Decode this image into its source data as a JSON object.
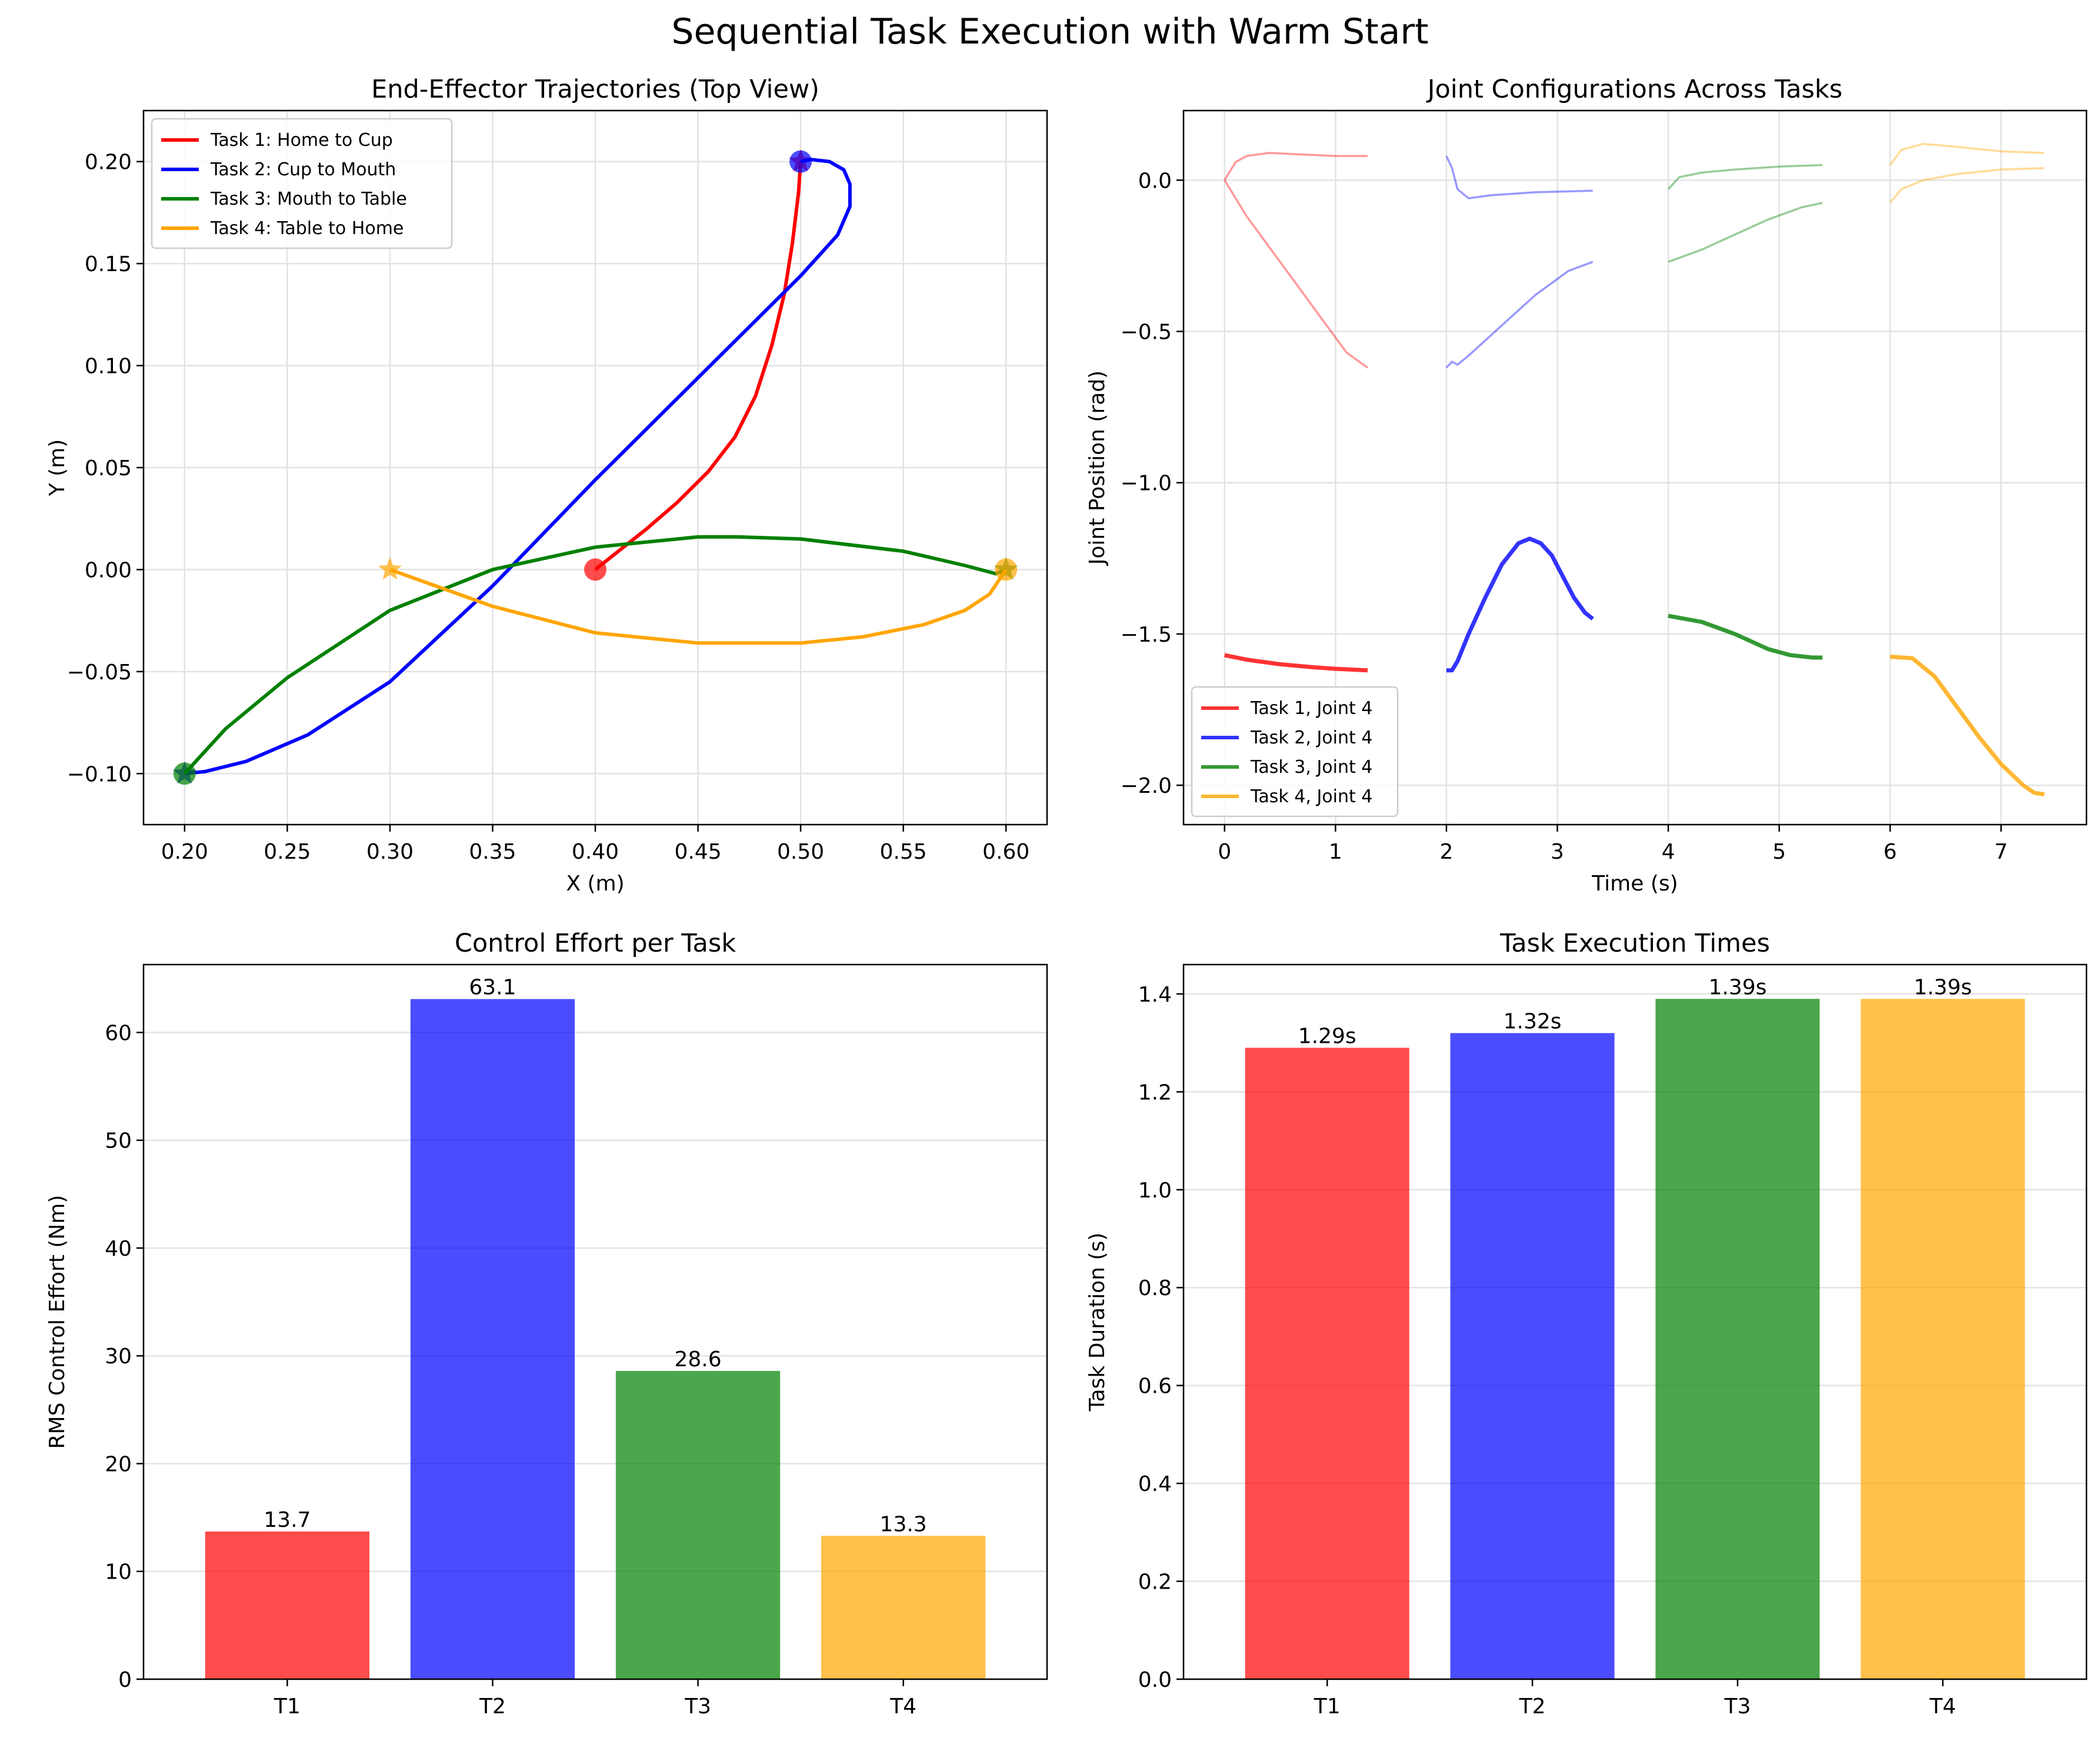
{
  "figure": {
    "title": "Sequential Task Execution with Warm Start"
  },
  "chart_data": [
    {
      "id": "trajectories",
      "type": "line",
      "title": "End-Effector Trajectories (Top View)",
      "xlabel": "X (m)",
      "ylabel": "Y (m)",
      "xlim": [
        0.18,
        0.62
      ],
      "ylim": [
        -0.125,
        0.225
      ],
      "xticks": [
        0.2,
        0.25,
        0.3,
        0.35,
        0.4,
        0.45,
        0.5,
        0.55,
        0.6
      ],
      "xtick_labels": [
        "0.20",
        "0.25",
        "0.30",
        "0.35",
        "0.40",
        "0.45",
        "0.50",
        "0.55",
        "0.60"
      ],
      "yticks": [
        -0.1,
        -0.05,
        0.0,
        0.05,
        0.1,
        0.15,
        0.2
      ],
      "ytick_labels": [
        "−0.10",
        "−0.05",
        "0.00",
        "0.05",
        "0.10",
        "0.15",
        "0.20"
      ],
      "grid": true,
      "legend_position": "top-left",
      "series": [
        {
          "name": "Task 1: Home to Cup",
          "color": "#ff0000",
          "x": [
            0.4,
            0.41,
            0.425,
            0.44,
            0.455,
            0.468,
            0.478,
            0.486,
            0.492,
            0.496,
            0.499,
            0.5
          ],
          "y": [
            0.0,
            0.008,
            0.02,
            0.033,
            0.048,
            0.065,
            0.085,
            0.11,
            0.135,
            0.16,
            0.185,
            0.2
          ],
          "start_marker": "circle",
          "end_marker": "star"
        },
        {
          "name": "Task 2: Cup to Mouth",
          "color": "#0000ff",
          "x": [
            0.5,
            0.505,
            0.514,
            0.521,
            0.524,
            0.524,
            0.518,
            0.5,
            0.47,
            0.44,
            0.4,
            0.35,
            0.3,
            0.26,
            0.23,
            0.21,
            0.2
          ],
          "y": [
            0.2,
            0.201,
            0.2,
            0.196,
            0.189,
            0.178,
            0.164,
            0.144,
            0.114,
            0.084,
            0.044,
            -0.008,
            -0.055,
            -0.081,
            -0.094,
            -0.099,
            -0.1
          ],
          "start_marker": "circle",
          "end_marker": "star"
        },
        {
          "name": "Task 3: Mouth to Table",
          "color": "#008000",
          "x": [
            0.2,
            0.22,
            0.25,
            0.3,
            0.35,
            0.4,
            0.45,
            0.47,
            0.5,
            0.55,
            0.58,
            0.595,
            0.6
          ],
          "y": [
            -0.1,
            -0.078,
            -0.053,
            -0.02,
            0.0,
            0.011,
            0.016,
            0.016,
            0.015,
            0.009,
            0.002,
            -0.002,
            0.0
          ],
          "start_marker": "circle",
          "end_marker": "star"
        },
        {
          "name": "Task 4: Table to Home",
          "color": "#ffa500",
          "x": [
            0.6,
            0.592,
            0.58,
            0.56,
            0.53,
            0.5,
            0.475,
            0.45,
            0.4,
            0.35,
            0.3
          ],
          "y": [
            0.0,
            -0.012,
            -0.02,
            -0.027,
            -0.033,
            -0.036,
            -0.036,
            -0.036,
            -0.031,
            -0.018,
            0.0
          ],
          "start_marker": "circle",
          "end_marker": "star"
        }
      ]
    },
    {
      "id": "joints",
      "type": "line",
      "title": "Joint Configurations Across Tasks",
      "xlabel": "Time (s)",
      "ylabel": "Joint Position (rad)",
      "xlim": [
        -0.37,
        7.77
      ],
      "ylim": [
        -2.13,
        0.23
      ],
      "xticks": [
        0,
        1,
        2,
        3,
        4,
        5,
        6,
        7
      ],
      "xtick_labels": [
        "0",
        "1",
        "2",
        "3",
        "4",
        "5",
        "6",
        "7"
      ],
      "yticks": [
        -2.0,
        -1.5,
        -1.0,
        -0.5,
        0.0
      ],
      "ytick_labels": [
        "−2.0",
        "−1.5",
        "−1.0",
        "−0.5",
        "0.0"
      ],
      "grid": true,
      "legend_position": "bottom-left",
      "series": [
        {
          "name": "Task 1, Joint 4",
          "color": "#ff0000",
          "x": [
            0.0,
            0.2,
            0.5,
            0.8,
            1.0,
            1.29
          ],
          "y": [
            -1.57,
            -1.585,
            -1.6,
            -1.61,
            -1.615,
            -1.62
          ]
        },
        {
          "name": "Task 2, Joint 4",
          "color": "#0000ff",
          "x": [
            2.0,
            2.05,
            2.1,
            2.2,
            2.35,
            2.5,
            2.65,
            2.75,
            2.85,
            2.95,
            3.05,
            3.15,
            3.25,
            3.32
          ],
          "y": [
            -1.62,
            -1.62,
            -1.59,
            -1.5,
            -1.38,
            -1.27,
            -1.2,
            -1.185,
            -1.2,
            -1.24,
            -1.31,
            -1.38,
            -1.43,
            -1.45
          ]
        },
        {
          "name": "Task 3, Joint 4",
          "color": "#008000",
          "x": [
            4.0,
            4.3,
            4.6,
            4.9,
            5.1,
            5.3,
            5.39
          ],
          "y": [
            -1.44,
            -1.46,
            -1.5,
            -1.55,
            -1.57,
            -1.578,
            -1.578
          ]
        },
        {
          "name": "Task 4, Joint 4",
          "color": "#ffa500",
          "x": [
            6.0,
            6.2,
            6.4,
            6.6,
            6.8,
            7.0,
            7.2,
            7.3,
            7.39
          ],
          "y": [
            -1.575,
            -1.58,
            -1.64,
            -1.74,
            -1.84,
            -1.93,
            -2.0,
            -2.025,
            -2.03
          ]
        }
      ],
      "background_series": [
        {
          "color": "#ff0000",
          "x": [
            0.0,
            0.1,
            0.2,
            0.4,
            0.7,
            1.0,
            1.29
          ],
          "y": [
            0.0,
            0.06,
            0.08,
            0.09,
            0.085,
            0.08,
            0.08
          ]
        },
        {
          "color": "#ff0000",
          "x": [
            0.0,
            0.2,
            0.5,
            0.8,
            1.1,
            1.29
          ],
          "y": [
            0.0,
            -0.12,
            -0.27,
            -0.42,
            -0.57,
            -0.62
          ]
        },
        {
          "color": "#0000ff",
          "x": [
            2.0,
            2.05,
            2.1,
            2.2,
            2.4,
            2.8,
            3.32
          ],
          "y": [
            0.08,
            0.04,
            -0.03,
            -0.06,
            -0.05,
            -0.04,
            -0.035
          ]
        },
        {
          "color": "#0000ff",
          "x": [
            2.0,
            2.05,
            2.1,
            2.2,
            2.5,
            2.8,
            3.1,
            3.32
          ],
          "y": [
            -0.62,
            -0.6,
            -0.61,
            -0.58,
            -0.48,
            -0.38,
            -0.3,
            -0.27
          ]
        },
        {
          "color": "#008000",
          "x": [
            4.0,
            4.1,
            4.3,
            4.6,
            5.0,
            5.39
          ],
          "y": [
            -0.03,
            0.01,
            0.025,
            0.035,
            0.045,
            0.05
          ]
        },
        {
          "color": "#008000",
          "x": [
            4.0,
            4.3,
            4.6,
            4.9,
            5.2,
            5.39
          ],
          "y": [
            -0.27,
            -0.23,
            -0.18,
            -0.13,
            -0.09,
            -0.075
          ]
        },
        {
          "color": "#ffa500",
          "x": [
            6.0,
            6.1,
            6.3,
            6.6,
            7.0,
            7.39
          ],
          "y": [
            0.05,
            0.1,
            0.12,
            0.11,
            0.095,
            0.09
          ]
        },
        {
          "color": "#ffa500",
          "x": [
            6.0,
            6.1,
            6.3,
            6.6,
            7.0,
            7.39
          ],
          "y": [
            -0.075,
            -0.03,
            0.0,
            0.02,
            0.035,
            0.04
          ]
        }
      ]
    },
    {
      "id": "effort",
      "type": "bar",
      "title": "Control Effort per Task",
      "xlabel": "",
      "ylabel": "RMS Control Effort (Nm)",
      "categories": [
        "T1",
        "T2",
        "T3",
        "T4"
      ],
      "values": [
        13.7,
        63.1,
        28.6,
        13.3
      ],
      "value_labels": [
        "13.7",
        "63.1",
        "28.6",
        "13.3"
      ],
      "colors": [
        "#ff0000",
        "#0000ff",
        "#008000",
        "#ffa500"
      ],
      "ylim": [
        0,
        66.3
      ],
      "yticks": [
        0,
        10,
        20,
        30,
        40,
        50,
        60
      ],
      "ytick_labels": [
        "0",
        "10",
        "20",
        "30",
        "40",
        "50",
        "60"
      ],
      "grid": true
    },
    {
      "id": "times",
      "type": "bar",
      "title": "Task Execution Times",
      "xlabel": "",
      "ylabel": "Task Duration (s)",
      "categories": [
        "T1",
        "T2",
        "T3",
        "T4"
      ],
      "values": [
        1.29,
        1.32,
        1.39,
        1.39
      ],
      "value_labels": [
        "1.29s",
        "1.32s",
        "1.39s",
        "1.39s"
      ],
      "colors": [
        "#ff0000",
        "#0000ff",
        "#008000",
        "#ffa500"
      ],
      "ylim": [
        0,
        1.46
      ],
      "yticks": [
        0.0,
        0.2,
        0.4,
        0.6,
        0.8,
        1.0,
        1.2,
        1.4
      ],
      "ytick_labels": [
        "0.0",
        "0.2",
        "0.4",
        "0.6",
        "0.8",
        "1.0",
        "1.2",
        "1.4"
      ],
      "grid": true
    }
  ]
}
